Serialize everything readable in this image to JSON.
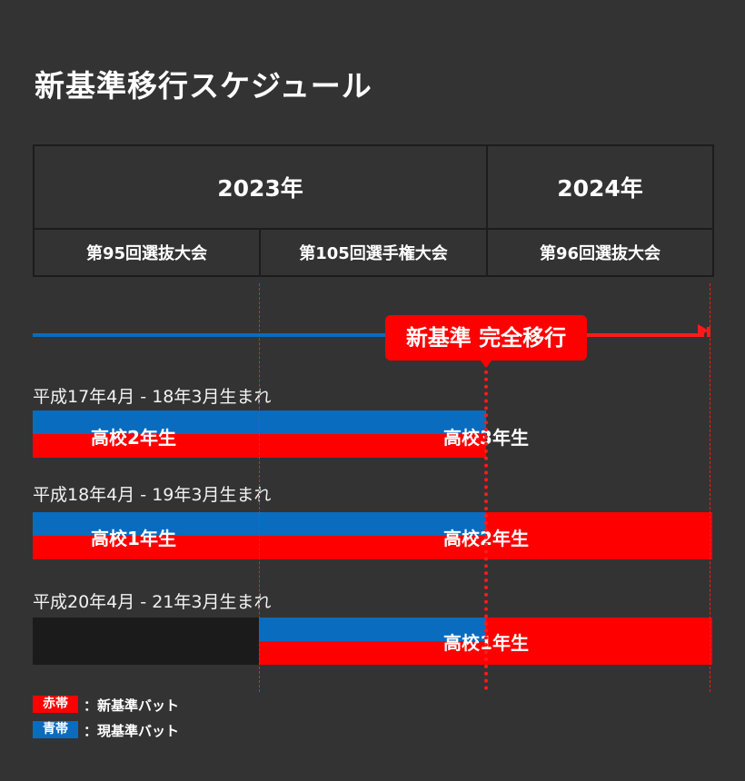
{
  "title": "新基準移行スケジュール",
  "table": {
    "years": [
      "2023年",
      "2024年"
    ],
    "tournaments": [
      "第95回選抜大会",
      "第105回選手権大会",
      "第96回選抜大会"
    ]
  },
  "badge": "新基準 完全移行",
  "groups": [
    {
      "label": "平成17年4月 - 18年3月生まれ",
      "grade_a": "高校2年生",
      "grade_b": "高校3年生"
    },
    {
      "label": "平成18年4月 - 19年3月生まれ",
      "grade_a": "高校1年生",
      "grade_b": "高校2年生"
    },
    {
      "label": "平成20年4月 - 21年3月生まれ",
      "grade_b": "高校1年生"
    }
  ],
  "legend": [
    {
      "swatch": "赤帯",
      "text": "：新基準バット",
      "color": "#ff0000"
    },
    {
      "swatch": "青帯",
      "text": "：現基準バット",
      "color": "#0a6cbf"
    }
  ]
}
